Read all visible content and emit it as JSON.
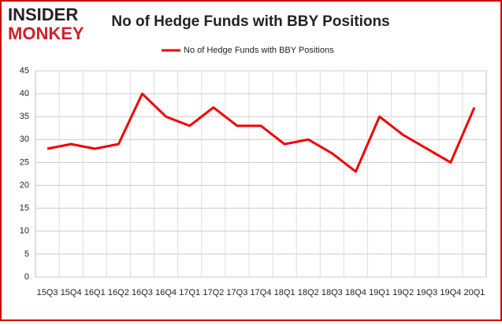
{
  "logo": {
    "line1": "INSIDER",
    "line2": "MONKEY"
  },
  "chart_data": {
    "type": "line",
    "title": "No of Hedge Funds with BBY Positions",
    "categories": [
      "15Q3",
      "15Q4",
      "16Q1",
      "16Q2",
      "16Q3",
      "16Q4",
      "17Q1",
      "17Q2",
      "17Q3",
      "17Q4",
      "18Q1",
      "18Q2",
      "18Q3",
      "18Q4",
      "19Q1",
      "19Q2",
      "19Q3",
      "19Q4",
      "20Q1"
    ],
    "series": [
      {
        "name": "No of Hedge Funds with BBY Positions",
        "color": "#ee0000",
        "values": [
          28,
          29,
          28,
          29,
          40,
          35,
          33,
          37,
          33,
          33,
          29,
          30,
          27,
          23,
          35,
          31,
          28,
          25,
          37
        ]
      }
    ],
    "ylim": [
      0,
      45
    ],
    "yticks": [
      0,
      5,
      10,
      15,
      20,
      25,
      30,
      35,
      40,
      45
    ],
    "grid": true,
    "legend": "top"
  }
}
